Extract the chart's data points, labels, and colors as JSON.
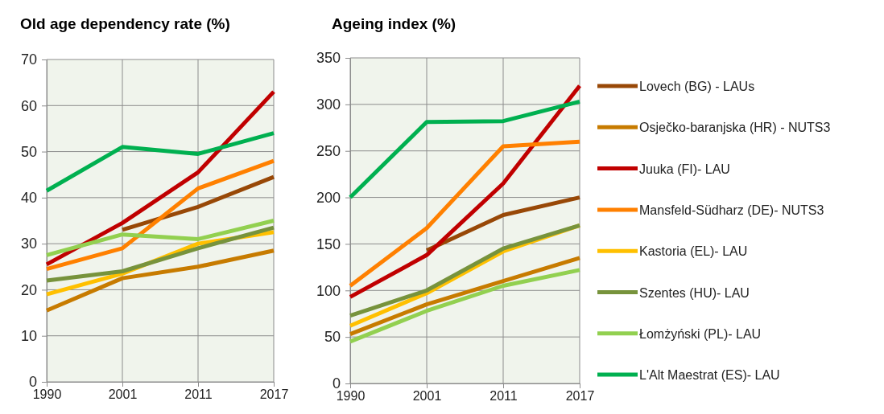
{
  "chart_data": [
    {
      "type": "line",
      "title": "Old age dependency rate (%)",
      "categories": [
        "1990",
        "2001",
        "2011",
        "2017"
      ],
      "ylim": [
        0,
        70
      ],
      "yticks": [
        0,
        10,
        20,
        30,
        40,
        50,
        60,
        70
      ],
      "grid": true,
      "legend": false,
      "series": [
        {
          "color": "#984807",
          "values": [
            null,
            33,
            38,
            44.5
          ]
        },
        {
          "color": "#c77b00",
          "values": [
            15.5,
            22.5,
            25,
            28.5
          ]
        },
        {
          "color": "#c00000",
          "values": [
            25.5,
            34.5,
            45.5,
            63
          ]
        },
        {
          "color": "#ff8000",
          "values": [
            24.5,
            29,
            42,
            48
          ]
        },
        {
          "color": "#ffc000",
          "values": [
            19,
            23.5,
            30,
            32.5
          ]
        },
        {
          "color": "#77933c",
          "values": [
            22,
            24,
            29,
            33.5
          ]
        },
        {
          "color": "#92d050",
          "values": [
            27.5,
            32,
            31,
            35
          ]
        },
        {
          "color": "#00b050",
          "values": [
            41.5,
            51,
            49.5,
            54
          ]
        }
      ]
    },
    {
      "type": "line",
      "title": "Ageing index (%)",
      "categories": [
        "1990",
        "2001",
        "2011",
        "2017"
      ],
      "ylim": [
        0,
        350
      ],
      "yticks": [
        0,
        50,
        100,
        150,
        200,
        250,
        300,
        350
      ],
      "grid": true,
      "legend": "right",
      "series": [
        {
          "name": "Lovech (BG) - LAUs",
          "color": "#984807",
          "values": [
            null,
            143,
            181,
            200
          ]
        },
        {
          "name": "Osječko-baranjska (HR) - NUTS3",
          "color": "#c77b00",
          "values": [
            53,
            85,
            110,
            135
          ]
        },
        {
          "name": "Juuka (FI)- LAU",
          "color": "#c00000",
          "values": [
            93,
            138,
            215,
            320
          ]
        },
        {
          "name": "Mansfeld-Südharz (DE)- NUTS3",
          "color": "#ff8000",
          "values": [
            105,
            167,
            255,
            260
          ]
        },
        {
          "name": "Kastoria (EL)- LAU",
          "color": "#ffc000",
          "values": [
            62,
            97,
            142,
            170
          ]
        },
        {
          "name": "Szentes (HU)- LAU",
          "color": "#77933c",
          "values": [
            73,
            100,
            145,
            170
          ]
        },
        {
          "name": "Łomżyński (PL)- LAU",
          "color": "#92d050",
          "values": [
            45,
            78,
            105,
            122
          ]
        },
        {
          "name": "L'Alt Maestrat (ES)- LAU",
          "color": "#00b050",
          "values": [
            200,
            281,
            282,
            303
          ]
        }
      ]
    }
  ]
}
